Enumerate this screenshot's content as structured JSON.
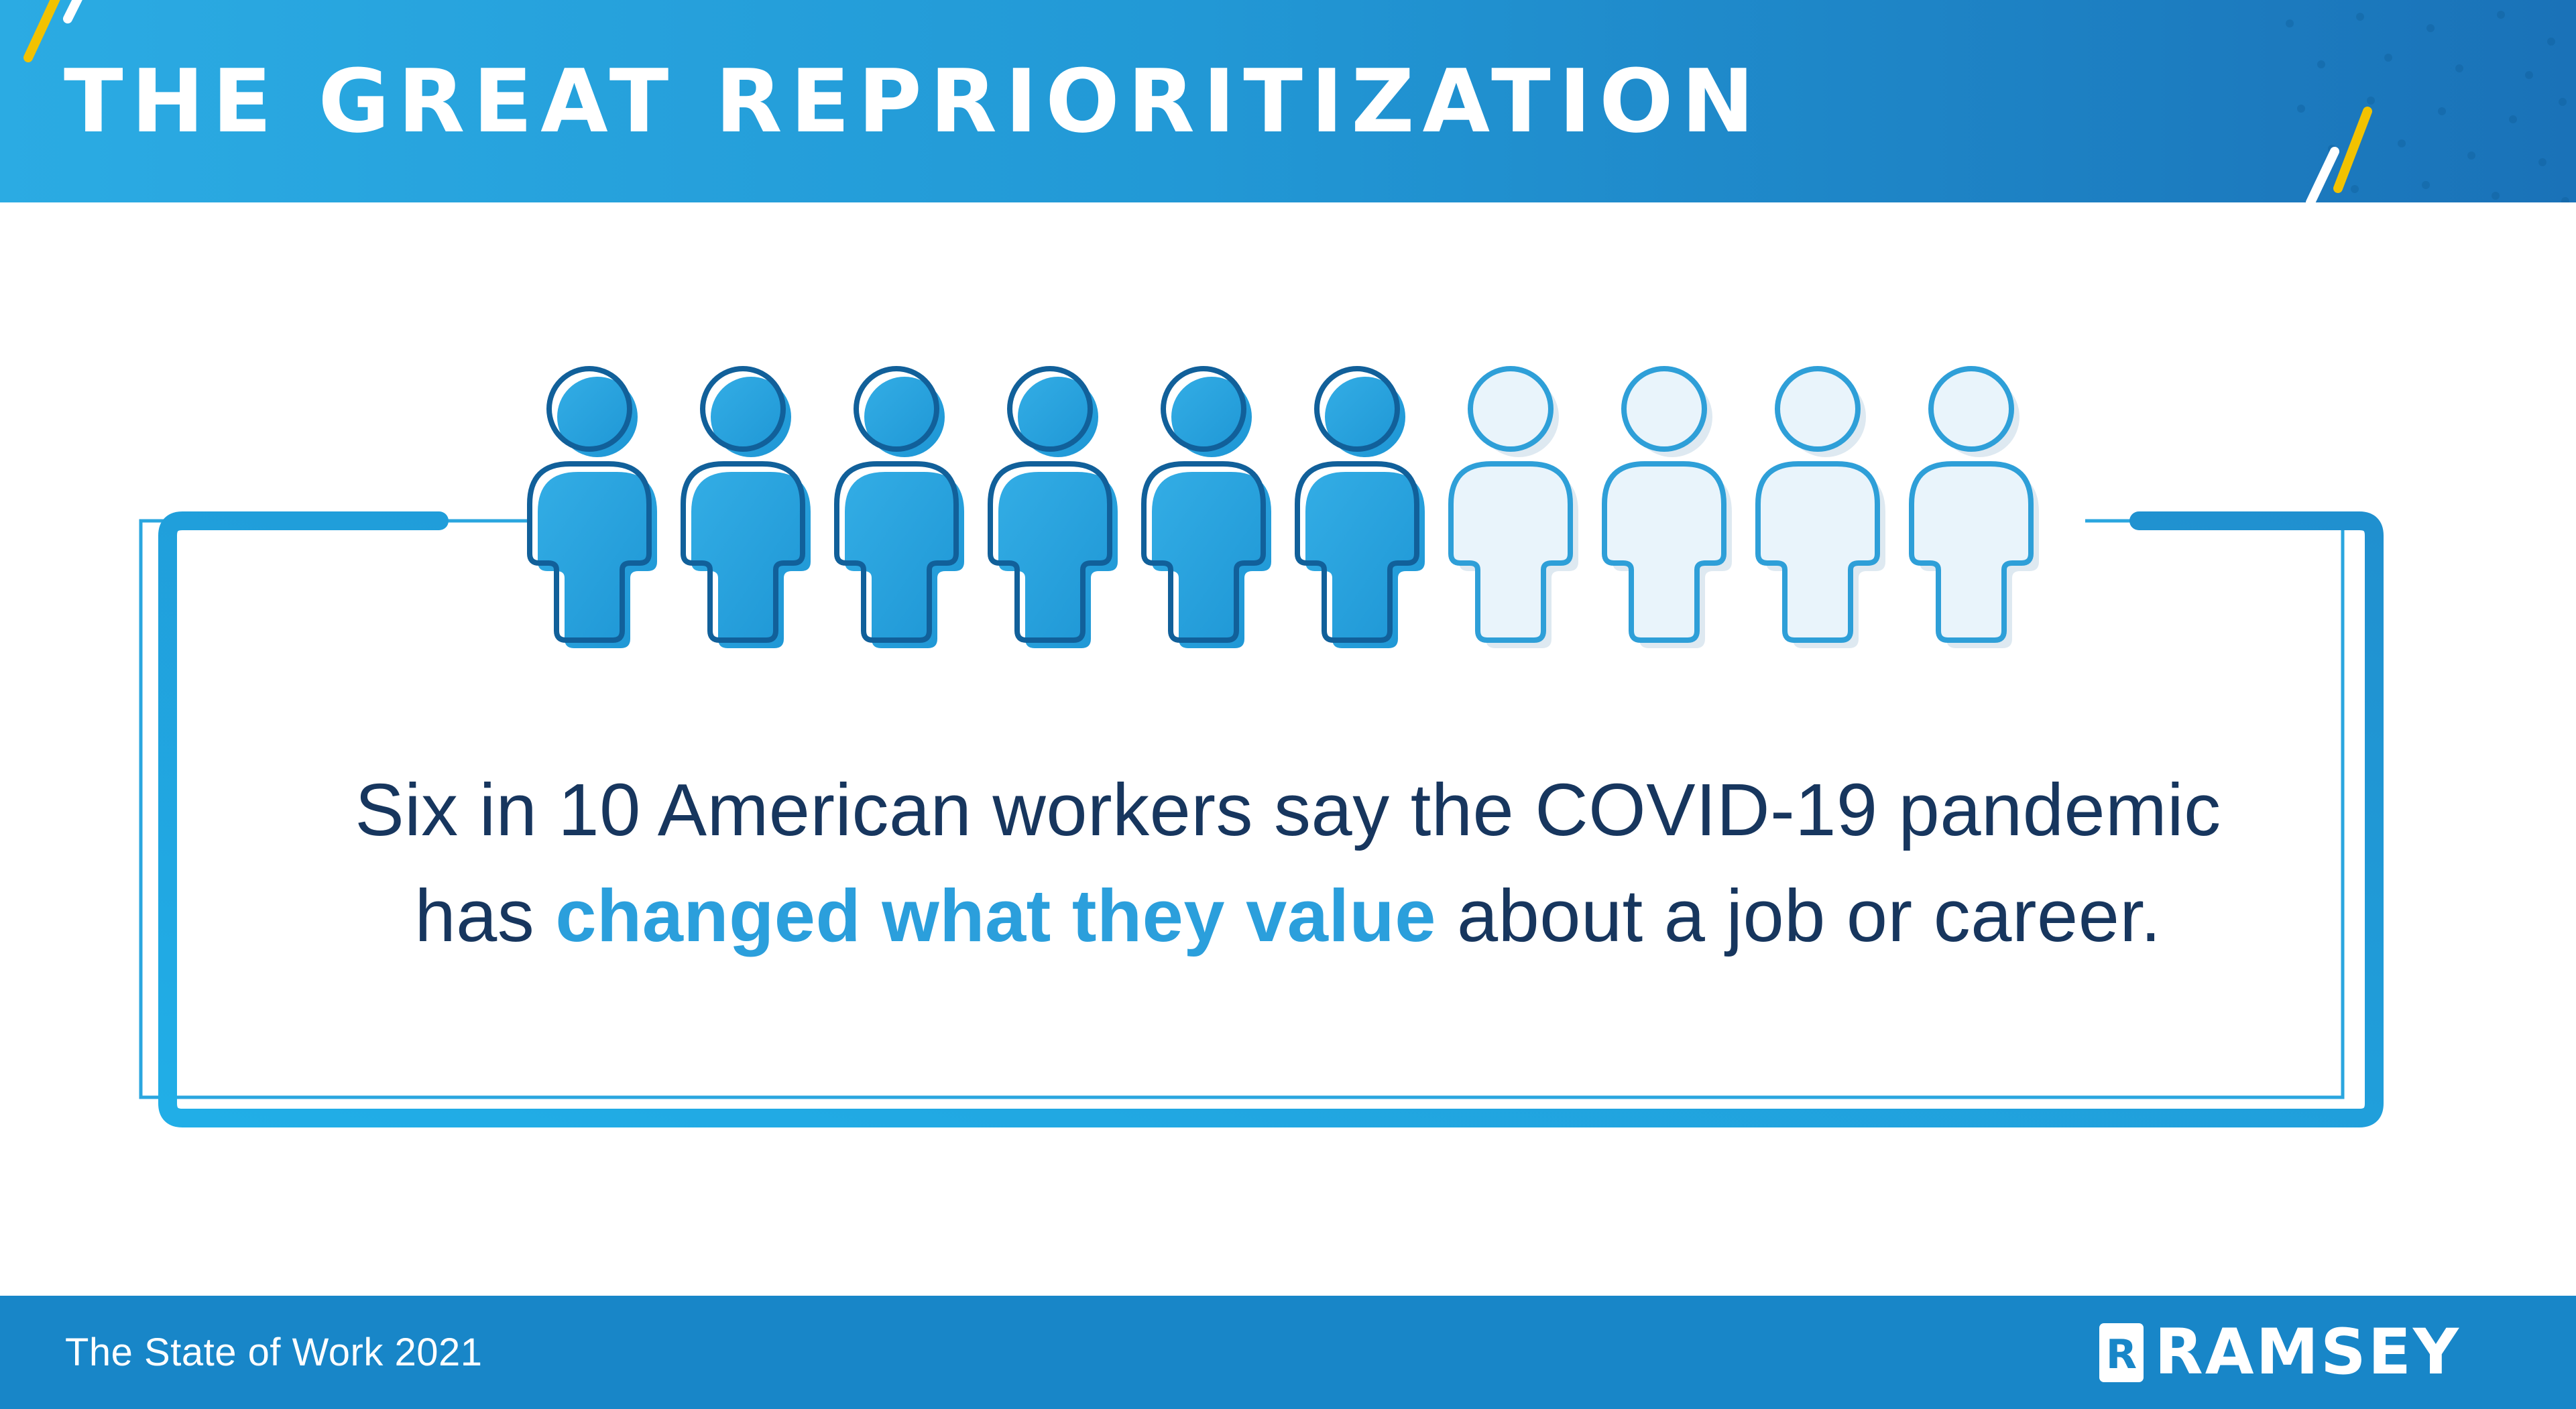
{
  "header": {
    "title": "THE GREAT REPRIORITIZATION"
  },
  "chart_data": {
    "type": "pictograph",
    "title": "THE GREAT REPRIORITIZATION",
    "icon": "person",
    "total_icons": 10,
    "highlighted_icons": 6,
    "value": "6 in 10",
    "annotation": "Six in 10 American workers say the COVID-19 pandemic has changed what they value about a job or career.",
    "legend_position": "none",
    "grid": false
  },
  "pictograph": {
    "filled": 6,
    "total": 10
  },
  "caption": {
    "line1": "Six in 10 American workers say the COVID-19 pandemic",
    "line2_pre": "has ",
    "line2_highlight": "changed what they value",
    "line2_post": " about a job or career."
  },
  "footer": {
    "source_label": "The State of Work 2021",
    "brand": "RAMSEY",
    "brand_mark_letter": "R"
  },
  "colors": {
    "accent": "#29A4E0",
    "navy": "#17365E",
    "highlight": "#2B9FDC",
    "yellow": "#F2C200",
    "header_grad_start": "#2BABE3",
    "header_grad_end": "#1A72B8",
    "footer_bg": "#1886C8",
    "icon_fill_start": "#33ADE5",
    "icon_fill_end": "#1D95D4",
    "icon_stroke": "#11609A",
    "icon_empty_fill": "#E9F4FB",
    "icon_empty_stroke": "#2E9FD8",
    "icon_empty_shadow": "#DEE9F1"
  }
}
